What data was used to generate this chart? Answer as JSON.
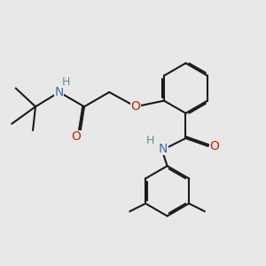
{
  "background_color": "#e8e8e8",
  "bond_color": "#1a1a1a",
  "nitrogen_color": "#4169b0",
  "oxygen_color": "#cc2200",
  "hydrogen_color": "#5a9090",
  "bond_width": 1.5,
  "dbo": 0.06,
  "figsize": [
    3.0,
    3.0
  ],
  "dpi": 100,
  "xlim": [
    0,
    10
  ],
  "ylim": [
    0,
    10
  ]
}
